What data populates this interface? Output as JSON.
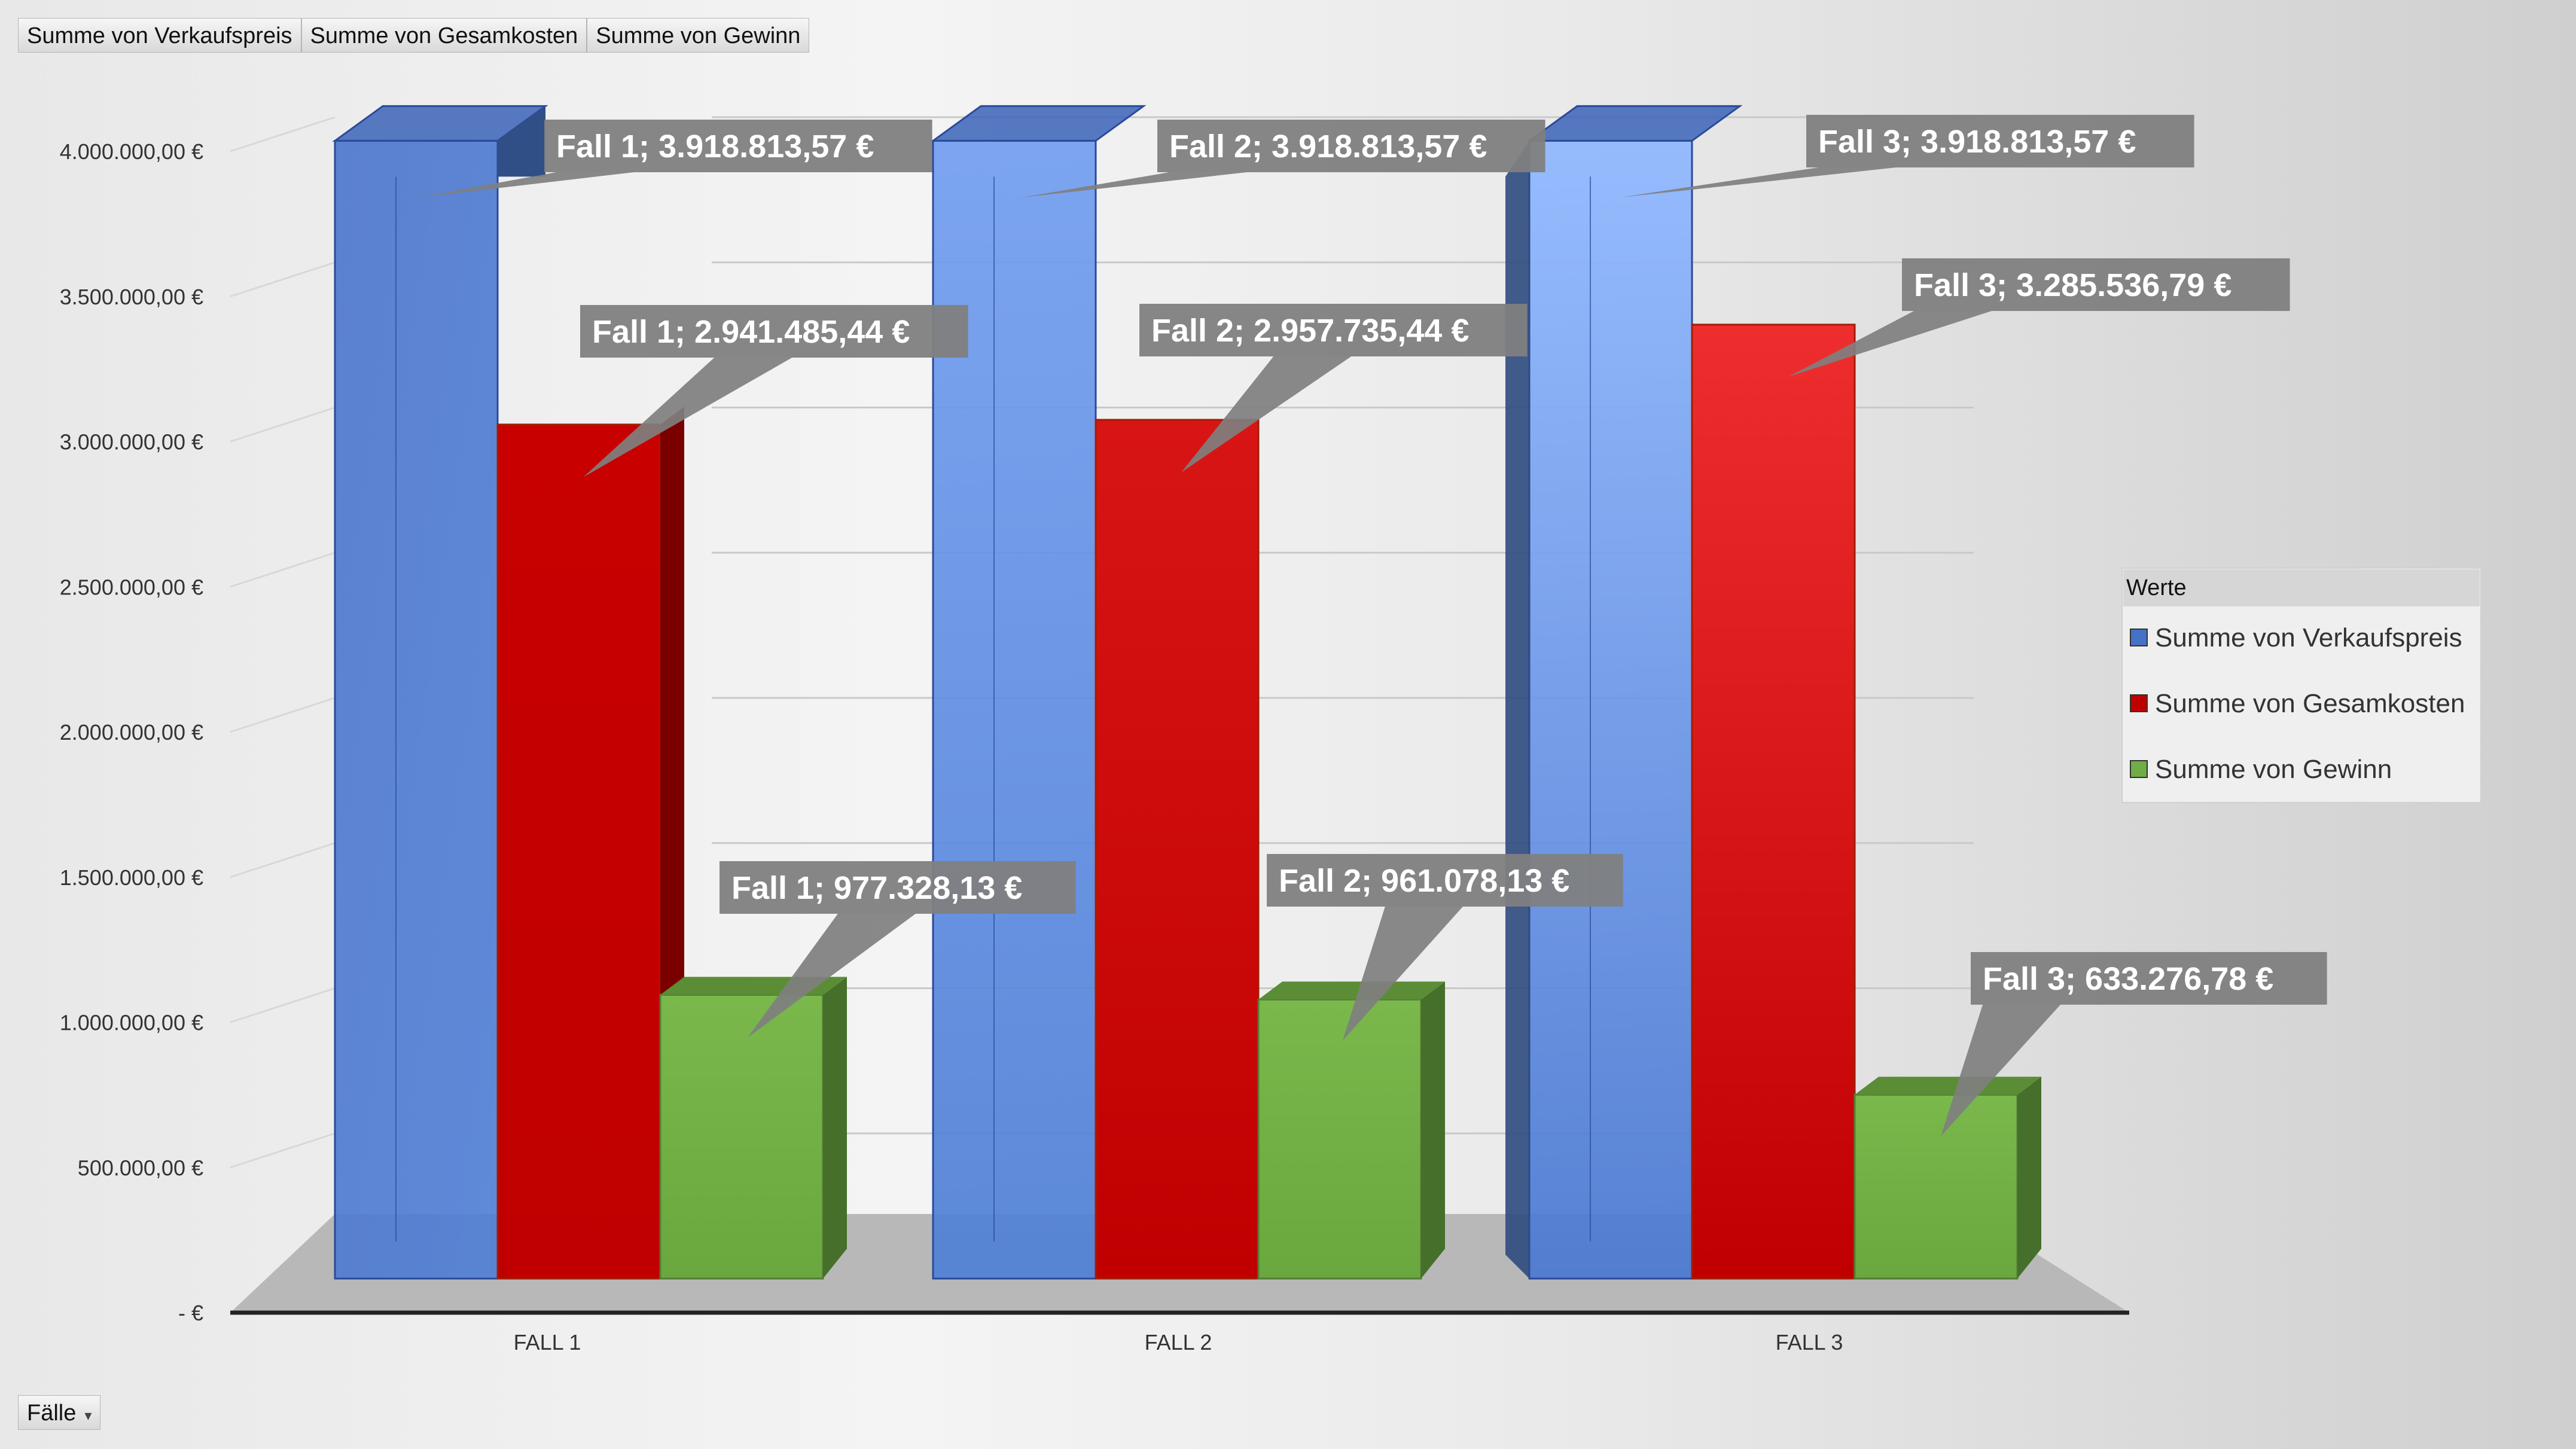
{
  "field_buttons": {
    "values": [
      "Summe von Verkaufspreis",
      "Summe von Gesamkosten",
      "Summe von Gewinn"
    ],
    "axis": "Fälle",
    "axis_dropdown_icon": "chevron-down-icon"
  },
  "chart_data": {
    "type": "bar",
    "style": "3d-clustered-column",
    "categories": [
      "FALL 1",
      "FALL 2",
      "FALL 3"
    ],
    "ylim": [
      0,
      4000000
    ],
    "yticks": [
      {
        "v": 0,
        "label": "-   €"
      },
      {
        "v": 500000,
        "label": "500.000,00 €"
      },
      {
        "v": 1000000,
        "label": "1.000.000,00 €"
      },
      {
        "v": 1500000,
        "label": "1.500.000,00 €"
      },
      {
        "v": 2000000,
        "label": "2.000.000,00 €"
      },
      {
        "v": 2500000,
        "label": "2.500.000,00 €"
      },
      {
        "v": 3000000,
        "label": "3.000.000,00 €"
      },
      {
        "v": 3500000,
        "label": "3.500.000,00 €"
      },
      {
        "v": 4000000,
        "label": "4.000.000,00 €"
      }
    ],
    "grid": true,
    "legend": {
      "title": "Werte",
      "position": "right"
    },
    "series": [
      {
        "name": "Summe von Verkaufspreis",
        "color": "#4472c4",
        "values": [
          3918813.57,
          3918813.57,
          3918813.57
        ],
        "labels": [
          "Fall 1;  3.918.813,57 €",
          "Fall 2;  3.918.813,57 €",
          "Fall 3;  3.918.813,57 €"
        ]
      },
      {
        "name": "Summe von Gesamkosten",
        "color": "#c00000",
        "values": [
          2941485.44,
          2957735.44,
          3285536.79
        ],
        "labels": [
          "Fall 1;  2.941.485,44 €",
          "Fall 2;  2.957.735,44 €",
          "Fall 3;  3.285.536,79 €"
        ]
      },
      {
        "name": "Summe von Gewinn",
        "color": "#70ad47",
        "values": [
          977328.13,
          961078.13,
          633276.78
        ],
        "labels": [
          "Fall 1;  977.328,13 €",
          "Fall 2;  961.078,13 €",
          "Fall 3;  633.276,78 €"
        ]
      }
    ]
  }
}
